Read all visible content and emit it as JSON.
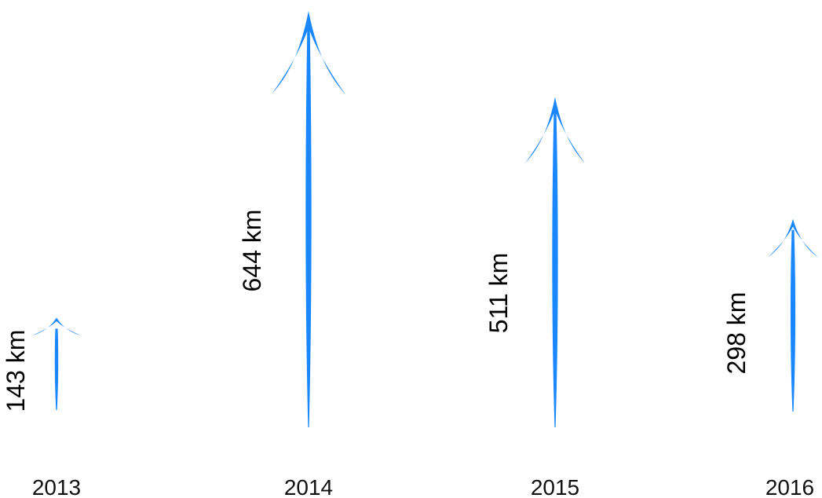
{
  "colors": {
    "arrow": "#1a87ff",
    "text": "#000000"
  },
  "chart_data": {
    "type": "bar",
    "style": "vertical arrows",
    "categories": [
      "2013",
      "2014",
      "2015",
      "2016"
    ],
    "values": [
      143,
      644,
      511,
      298
    ],
    "value_labels": [
      "143 km",
      "644 km",
      "511  km",
      "298  km"
    ],
    "unit": "km"
  }
}
